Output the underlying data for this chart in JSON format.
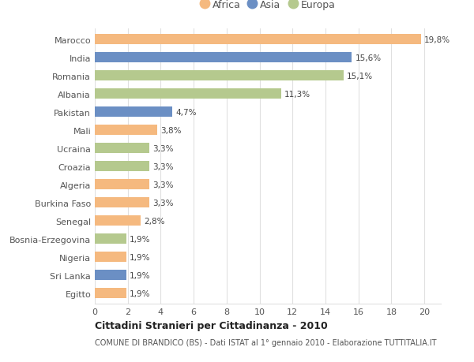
{
  "categories": [
    "Egitto",
    "Sri Lanka",
    "Nigeria",
    "Bosnia-Erzegovina",
    "Senegal",
    "Burkina Faso",
    "Algeria",
    "Croazia",
    "Ucraina",
    "Mali",
    "Pakistan",
    "Albania",
    "Romania",
    "India",
    "Marocco"
  ],
  "values": [
    1.9,
    1.9,
    1.9,
    1.9,
    2.8,
    3.3,
    3.3,
    3.3,
    3.3,
    3.8,
    4.7,
    11.3,
    15.1,
    15.6,
    19.8
  ],
  "continents": [
    "Africa",
    "Asia",
    "Africa",
    "Europa",
    "Africa",
    "Africa",
    "Africa",
    "Europa",
    "Europa",
    "Africa",
    "Asia",
    "Europa",
    "Europa",
    "Asia",
    "Africa"
  ],
  "colors": {
    "Africa": "#F5B97F",
    "Asia": "#6B8FC4",
    "Europa": "#B5C98E"
  },
  "labels": [
    "1,9%",
    "1,9%",
    "1,9%",
    "1,9%",
    "2,8%",
    "3,3%",
    "3,3%",
    "3,3%",
    "3,3%",
    "3,8%",
    "4,7%",
    "11,3%",
    "15,1%",
    "15,6%",
    "19,8%"
  ],
  "title": "Cittadini Stranieri per Cittadinanza - 2010",
  "subtitle": "COMUNE DI BRANDICO (BS) - Dati ISTAT al 1° gennaio 2010 - Elaborazione TUTTITALIA.IT",
  "xlim": [
    0,
    21
  ],
  "xticks": [
    0,
    2,
    4,
    6,
    8,
    10,
    12,
    14,
    16,
    18,
    20
  ],
  "legend_order": [
    "Africa",
    "Asia",
    "Europa"
  ],
  "bg_color": "#ffffff",
  "grid_color": "#e0e0e0"
}
